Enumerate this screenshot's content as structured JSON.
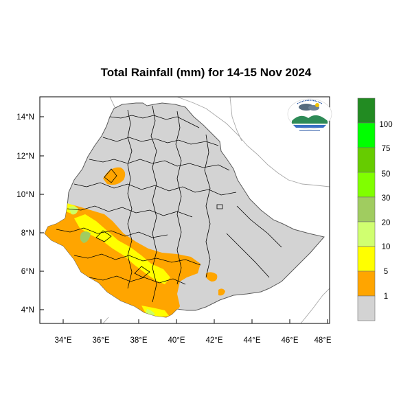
{
  "title": "Total Rainfall (mm) for 14-15 Nov 2024",
  "map": {
    "longitude_ticks": [
      "34°E",
      "36°E",
      "38°E",
      "40°E",
      "42°E",
      "44°E",
      "46°E",
      "48°E"
    ],
    "latitude_ticks": [
      "14°N",
      "12°N",
      "10°N",
      "8°N",
      "6°N",
      "4°N"
    ],
    "logo_icon": "ethiopian-meteorology-institute-logo"
  },
  "legend": {
    "labels": [
      "100",
      "75",
      "50",
      "30",
      "20",
      "10",
      "5",
      "1"
    ],
    "colors": [
      "#228B22",
      "#00FF00",
      "#66CC00",
      "#80FF00",
      "#A0CC60",
      "#D0FF70",
      "#FFFF00",
      "#FFA500",
      "#D3D3D3"
    ]
  },
  "colors": {
    "country_fill": "#D3D3D3",
    "outside_fill": "#FFFFFF",
    "boundary": "#000000",
    "neighbor_border": "#A0A0A0"
  }
}
